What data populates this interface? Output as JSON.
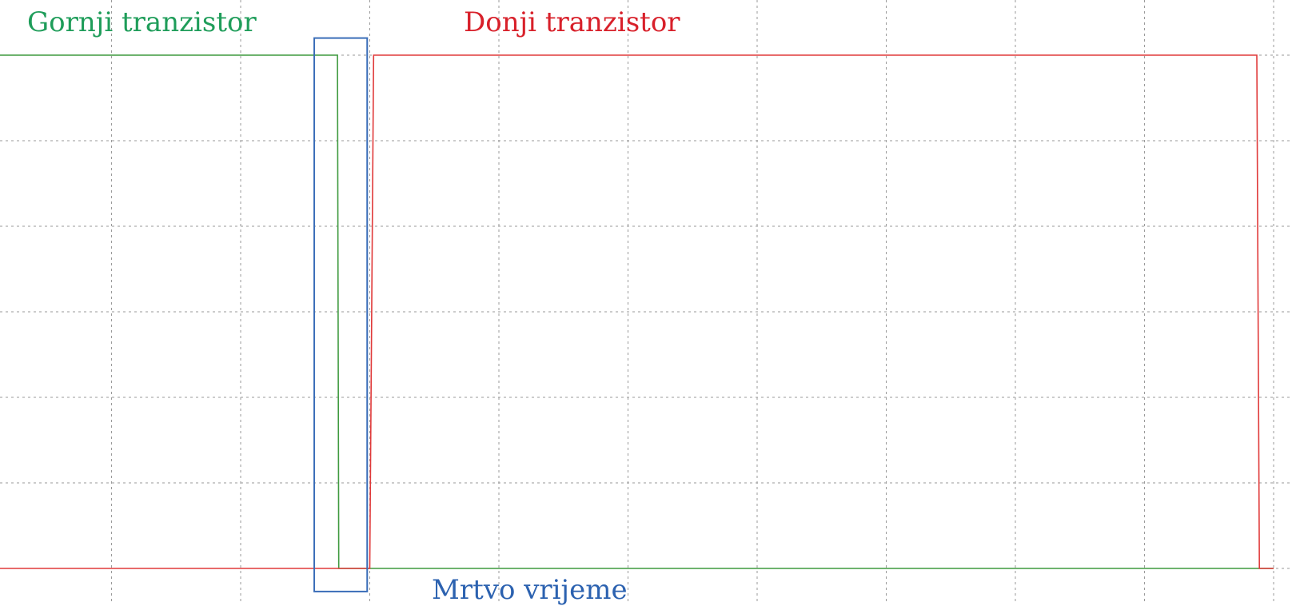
{
  "colors": {
    "high_side": "#1f9d5a",
    "low_side": "#d8202a",
    "dead_time": "#2c62b0",
    "grid": "#9a9a9a",
    "trace_high": "#3f9a3f",
    "trace_low": "#e03a3a",
    "box": "#3a6db8"
  },
  "labels": {
    "high_side": "Gornji tranzistor",
    "low_side": "Donji tranzistor",
    "dead_time": "Mrtvo vrijeme"
  },
  "chart_data": {
    "type": "line",
    "grid": true,
    "xlim": [
      0,
      10
    ],
    "ylim": [
      0,
      6
    ],
    "x_divisions": 10,
    "y_divisions": 6,
    "series": [
      {
        "name": "Gornji tranzistor",
        "x": [
          0,
          0.03,
          0.06,
          2.75,
          2.76,
          9.85,
          9.87,
          10
        ],
        "y": [
          0,
          0,
          6,
          6,
          0,
          0,
          0,
          0
        ]
      },
      {
        "name": "Donji tranzistor",
        "x": [
          0,
          3.0,
          3.03,
          9.87,
          9.89,
          10
        ],
        "y": [
          0,
          0,
          6,
          6,
          0,
          0
        ]
      }
    ],
    "annotations": [
      {
        "type": "box",
        "x0": 2.57,
        "x1": 2.98,
        "y0": -0.27,
        "y1": 6.2,
        "label": "Mrtvo vrijeme"
      }
    ]
  }
}
